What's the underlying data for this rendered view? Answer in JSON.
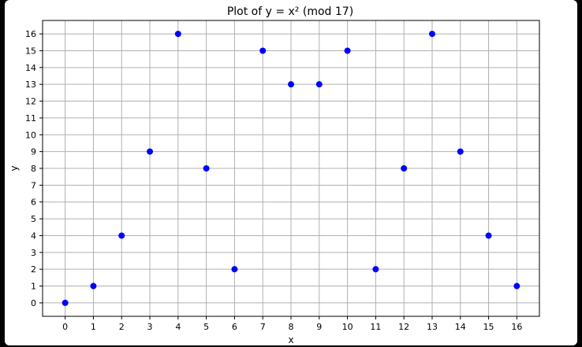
{
  "chart_data": {
    "type": "scatter",
    "title": "Plot of y = x² (mod 17)",
    "xlabel": "x",
    "ylabel": "y",
    "x": [
      0,
      1,
      2,
      3,
      4,
      5,
      6,
      7,
      8,
      9,
      10,
      11,
      12,
      13,
      14,
      15,
      16
    ],
    "y": [
      0,
      1,
      4,
      9,
      16,
      8,
      2,
      15,
      13,
      13,
      15,
      2,
      8,
      16,
      9,
      4,
      1
    ],
    "xticks": [
      "0",
      "1",
      "2",
      "3",
      "4",
      "5",
      "6",
      "7",
      "8",
      "9",
      "10",
      "11",
      "12",
      "13",
      "14",
      "15",
      "16"
    ],
    "yticks": [
      "0",
      "1",
      "2",
      "3",
      "4",
      "5",
      "6",
      "7",
      "8",
      "9",
      "10",
      "11",
      "12",
      "13",
      "14",
      "15",
      "16"
    ],
    "xlim": [
      -0.8,
      16.8
    ],
    "ylim": [
      -0.8,
      16.8
    ],
    "grid": true,
    "marker_color": "#0000ff"
  }
}
